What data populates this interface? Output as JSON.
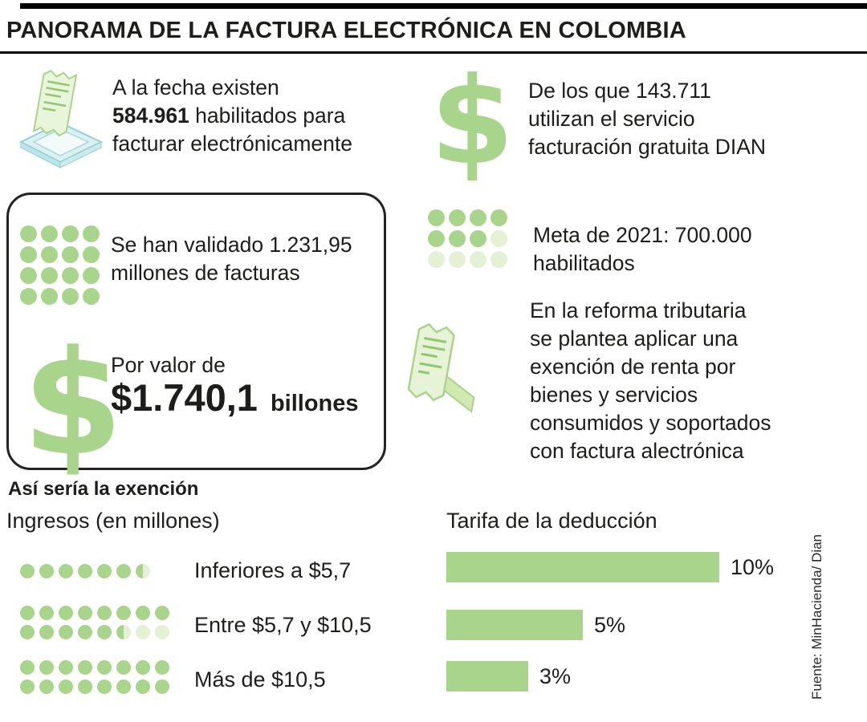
{
  "title": "PANORAMA DE LA FACTURA ELECTRÓNICA EN COLOMBIA",
  "source": "Fuente: MinHacienda/ Dian",
  "colors": {
    "green": "#a9d48b",
    "green_light": "#e4f1d4",
    "ink": "#1d1d1b"
  },
  "icons": {
    "dollar": "$"
  },
  "facts": {
    "habilitados": {
      "line1": "A la fecha existen",
      "line2_bold": "584.961",
      "line2_rest": " habilitados para",
      "line3": "facturar electrónicamente"
    },
    "gratuita": {
      "lines": [
        "De los que 143.711",
        "utilizan el servicio",
        "facturación gratuita DIAN"
      ]
    },
    "validadas": {
      "lines": [
        "Se han validado 1.231,95",
        "millones de facturas"
      ],
      "dots": [
        [
          "f",
          "f",
          "f",
          "f"
        ],
        [
          "f",
          "f",
          "f",
          "f"
        ],
        [
          "f",
          "f",
          "f",
          "f"
        ],
        [
          "f",
          "f",
          "f",
          "f"
        ]
      ]
    },
    "valor": {
      "label": "Por valor de",
      "amount": "$1.740,1",
      "unit": "billones"
    },
    "meta": {
      "lines": [
        "Meta de 2021: 700.000",
        "habilitados"
      ],
      "dots": [
        [
          "f",
          "f",
          "f",
          "f"
        ],
        [
          "f",
          "f",
          "f",
          "l"
        ],
        [
          "l",
          "l",
          "l",
          "l"
        ]
      ]
    },
    "reforma": {
      "lines": [
        "En la reforma tributaria",
        "se plantea aplicar una",
        "exención de renta por",
        "bienes y servicios",
        "consumidos y soportados",
        "con factura alectrónica"
      ]
    }
  },
  "exencion": {
    "heading": "Así sería la exención",
    "ingresos_title": "Ingresos (en millones)",
    "groups": [
      {
        "label": "Inferiores a $5,7",
        "dots": [
          [
            "f",
            "f",
            "f",
            "f",
            "f",
            "f",
            "h"
          ]
        ]
      },
      {
        "label": "Entre $5,7 y $10,5",
        "dots": [
          [
            "f",
            "f",
            "f",
            "f",
            "f",
            "f",
            "f",
            "f"
          ],
          [
            "f",
            "f",
            "f",
            "f",
            "f",
            "h",
            "l",
            "l"
          ]
        ]
      },
      {
        "label": "Más de $10,5",
        "dots": [
          [
            "f",
            "f",
            "f",
            "f",
            "f",
            "f",
            "f",
            "f"
          ],
          [
            "f",
            "f",
            "f",
            "f",
            "f",
            "f",
            "f",
            "f"
          ]
        ]
      }
    ]
  },
  "chart_data": {
    "type": "bar",
    "orientation": "horizontal",
    "title": "Tarifa de la deducción",
    "categories_title": "Ingresos (en millones)",
    "categories": [
      "Inferiores a $5,7",
      "Entre $5,7 y $10,5",
      "Más de $10,5"
    ],
    "values": [
      10,
      5,
      3
    ],
    "value_labels": [
      "10%",
      "5%",
      "3%"
    ],
    "xlim": [
      0,
      10
    ],
    "grid": false,
    "legend": false
  }
}
